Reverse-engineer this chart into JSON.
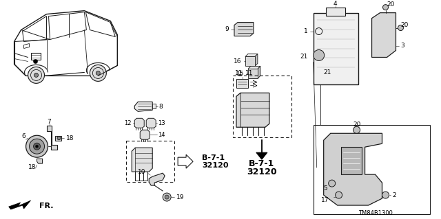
{
  "bg_color": "#ffffff",
  "line_color": "#1a1a1a",
  "diagram_code": "TM84B1300",
  "fr_label": "FR.",
  "b71_label": "B-7-1",
  "b71_num": "32120"
}
